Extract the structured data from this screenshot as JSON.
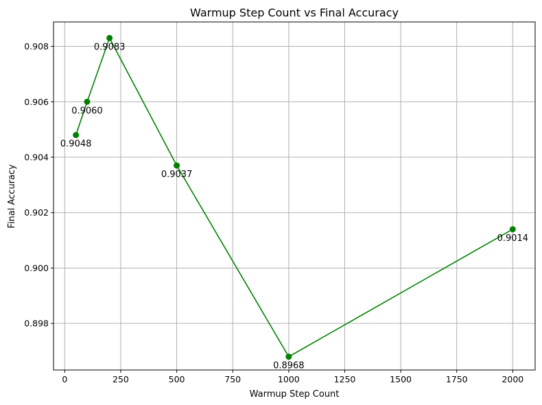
{
  "chart_data": {
    "type": "line",
    "title": "Warmup Step Count vs Final Accuracy",
    "xlabel": "Warmup Step Count",
    "ylabel": "Final Accuracy",
    "xlim": [
      -50,
      2100
    ],
    "ylim": [
      0.89632,
      0.90888
    ],
    "xticks": [
      0,
      250,
      500,
      750,
      1000,
      1250,
      1500,
      1750,
      2000
    ],
    "xtick_labels": [
      "0",
      "250",
      "500",
      "750",
      "1000",
      "1250",
      "1500",
      "1750",
      "2000"
    ],
    "yticks": [
      0.898,
      0.9,
      0.902,
      0.904,
      0.906,
      0.908
    ],
    "ytick_labels": [
      "0.898",
      "0.900",
      "0.902",
      "0.904",
      "0.906",
      "0.908"
    ],
    "grid": true,
    "series": [
      {
        "color": "#008000",
        "marker": "circle",
        "x": [
          50,
          100,
          200,
          500,
          1000,
          2000
        ],
        "y": [
          0.9048,
          0.906,
          0.9083,
          0.9037,
          0.8968,
          0.9014
        ],
        "labels": [
          "0.9048",
          "0.9060",
          "0.9083",
          "0.9037",
          "0.8968",
          "0.9014"
        ]
      }
    ]
  }
}
